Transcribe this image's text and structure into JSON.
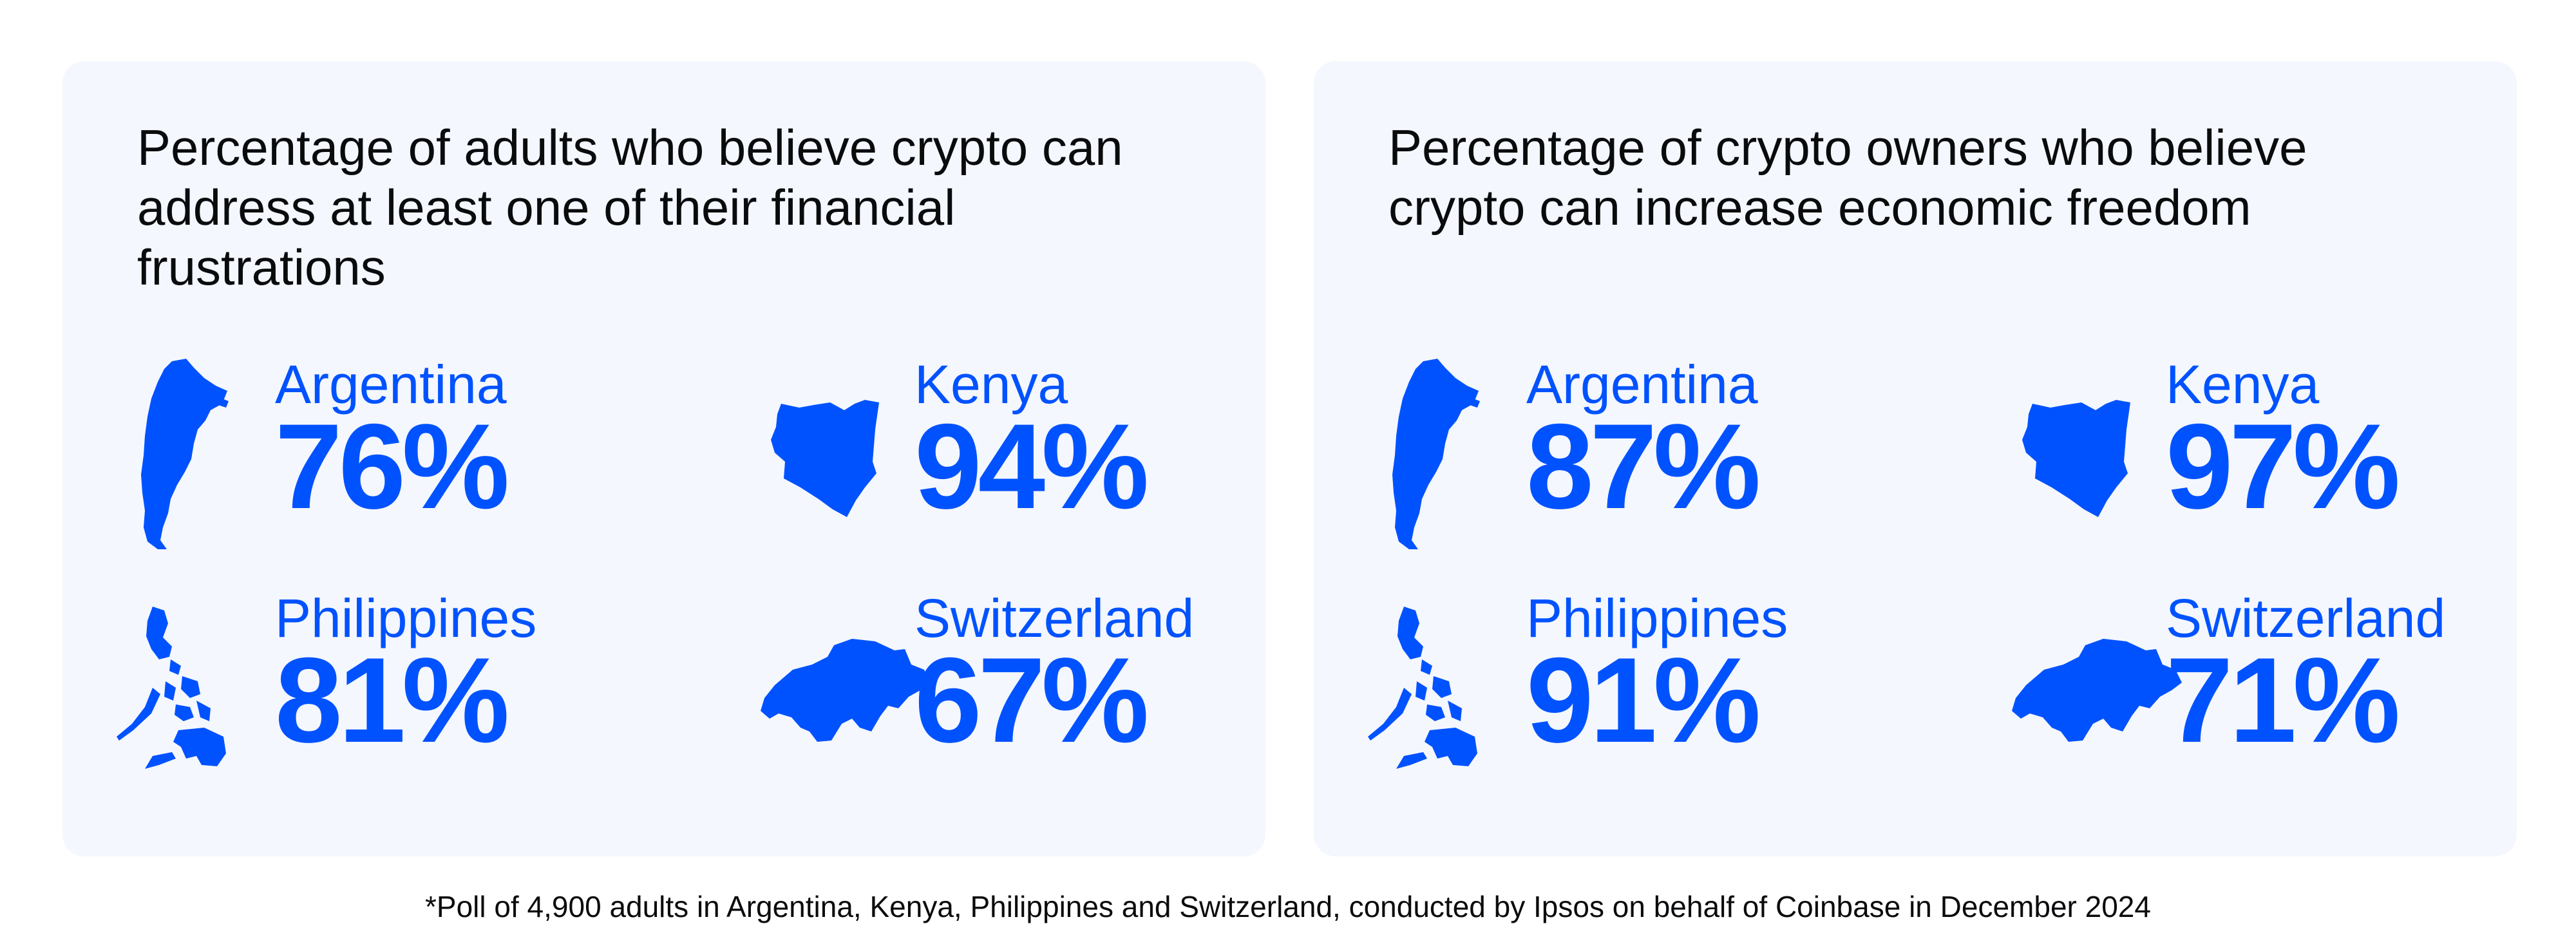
{
  "colors": {
    "accent": "#0052ff",
    "panel_background": "#f4f7fd",
    "text": "#0a0b0d"
  },
  "panels": [
    {
      "title": "Percentage of adults who believe crypto can address at least one of their financial frustrations",
      "stats": [
        {
          "country": "Argentina",
          "value": "76%",
          "icon": "argentina-map-icon"
        },
        {
          "country": "Kenya",
          "value": "94%",
          "icon": "kenya-map-icon"
        },
        {
          "country": "Philippines",
          "value": "81%",
          "icon": "philippines-map-icon"
        },
        {
          "country": "Switzerland",
          "value": "67%",
          "icon": "switzerland-map-icon"
        }
      ]
    },
    {
      "title": "Percentage of crypto owners who believe crypto can increase economic freedom",
      "stats": [
        {
          "country": "Argentina",
          "value": "87%",
          "icon": "argentina-map-icon"
        },
        {
          "country": "Kenya",
          "value": "97%",
          "icon": "kenya-map-icon"
        },
        {
          "country": "Philippines",
          "value": "91%",
          "icon": "philippines-map-icon"
        },
        {
          "country": "Switzerland",
          "value": "71%",
          "icon": "switzerland-map-icon"
        }
      ]
    }
  ],
  "footnote": "*Poll of 4,900 adults in Argentina, Kenya, Philippines and Switzerland, conducted by Ipsos on behalf of Coinbase in December 2024"
}
